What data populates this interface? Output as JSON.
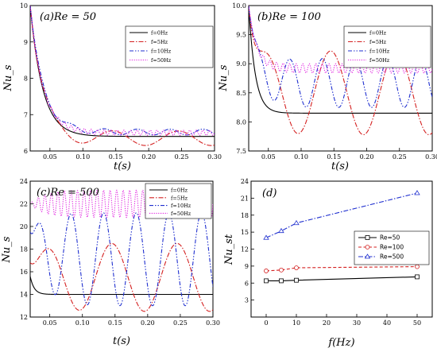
{
  "chart_data": [
    {
      "type": "line",
      "title": "(a)Re = 50",
      "xlabel": "t(s)",
      "ylabel": "Nu_s",
      "xlim": [
        0.02,
        0.3
      ],
      "ylim": [
        6.0,
        10.0
      ],
      "xticks": [
        "0.05",
        "0.10",
        "0.15",
        "0.20",
        "0.25",
        "0.30"
      ],
      "yticks": [
        "6",
        "7",
        "8",
        "9",
        "10"
      ],
      "legend": "top-right",
      "series": [
        {
          "name": "f=0Hz",
          "color": "#000000",
          "dash": "solid",
          "start": 10.0,
          "mean": 6.4,
          "tau": 0.019,
          "amp": 0.0,
          "freq": 0
        },
        {
          "name": "f=5Hz",
          "color": "#d42020",
          "dash": "dashdot",
          "start": 10.0,
          "mean": 6.35,
          "tau": 0.019,
          "amp": 0.2,
          "freq": 10
        },
        {
          "name": "f=10Hz",
          "color": "#1f2fcf",
          "dash": "dashdot2",
          "start": 10.0,
          "mean": 6.52,
          "tau": 0.02,
          "amp": 0.08,
          "freq": 20
        },
        {
          "name": "f=50Hz",
          "color": "#e020e0",
          "dash": "dotted",
          "start": 10.0,
          "mean": 6.5,
          "tau": 0.019,
          "amp": 0.07,
          "freq": 100
        }
      ]
    },
    {
      "type": "line",
      "title": "(b)Re = 100",
      "xlabel": "t(s)",
      "ylabel": "Nu_s",
      "xlim": [
        0.02,
        0.3
      ],
      "ylim": [
        7.5,
        10.0
      ],
      "xticks": [
        "0.05",
        "0.10",
        "0.15",
        "0.20",
        "0.25",
        "0.30"
      ],
      "yticks": [
        "7.5",
        "8.0",
        "8.5",
        "9.0",
        "9.5",
        "10.0"
      ],
      "legend": "top-right",
      "series": [
        {
          "name": "f=0Hz",
          "color": "#000000",
          "dash": "solid",
          "start": 10.0,
          "mean": 8.15,
          "tau": 0.01,
          "amp": 0.0,
          "freq": 0
        },
        {
          "name": "f=5Hz",
          "color": "#d42020",
          "dash": "dashdot",
          "start": 10.0,
          "mean": 8.5,
          "tau": 0.012,
          "amp": 0.72,
          "freq": 10
        },
        {
          "name": "f=10Hz",
          "color": "#1f2fcf",
          "dash": "dashdot2",
          "start": 10.0,
          "mean": 8.67,
          "tau": 0.012,
          "amp": 0.42,
          "freq": 20
        },
        {
          "name": "f=50Hz",
          "color": "#e020e0",
          "dash": "dotted",
          "start": 10.0,
          "mean": 8.92,
          "tau": 0.012,
          "amp": 0.08,
          "freq": 100
        }
      ]
    },
    {
      "type": "line",
      "title": "(c)Re = 500",
      "xlabel": "t(s)",
      "ylabel": "Nu_s",
      "xlim": [
        0.02,
        0.3
      ],
      "ylim": [
        12.0,
        24.0
      ],
      "xticks": [
        "0.05",
        "0.10",
        "0.15",
        "0.20",
        "0.25",
        "0.30"
      ],
      "yticks": [
        "12",
        "14",
        "16",
        "18",
        "20",
        "22",
        "24"
      ],
      "legend": "top-right",
      "series": [
        {
          "name": "f=0Hz",
          "color": "#000000",
          "dash": "solid",
          "start": 15.6,
          "mean": 14.0,
          "tau": 0.006,
          "amp": 0.0,
          "freq": 0
        },
        {
          "name": "f=5Hz",
          "color": "#d42020",
          "dash": "dashdot",
          "start": 16.8,
          "mean": 15.5,
          "tau": 0.02,
          "amp": 3.0,
          "freq": 10
        },
        {
          "name": "f=10Hz",
          "color": "#1f2fcf",
          "dash": "dashdot2",
          "start": 19.5,
          "mean": 17.1,
          "tau": 0.02,
          "amp": 4.1,
          "freq": 20
        },
        {
          "name": "f=50Hz",
          "color": "#e020e0",
          "dash": "dotted",
          "start": 22.0,
          "mean": 22.0,
          "tau": 0.02,
          "amp": 1.2,
          "freq": 100
        }
      ]
    },
    {
      "type": "line",
      "title": "(d)",
      "xlabel": "f(Hz)",
      "ylabel": "Nu_st",
      "xlim": [
        -5,
        55
      ],
      "ylim": [
        0,
        24
      ],
      "xticks": [
        "0",
        "10",
        "20",
        "30",
        "40",
        "50"
      ],
      "yticks": [
        "3",
        "6",
        "9",
        "12",
        "15",
        "18",
        "21",
        "24"
      ],
      "legend": "right",
      "x": [
        0,
        5,
        10,
        50
      ],
      "series": [
        {
          "name": "Re=50",
          "color": "#000000",
          "dash": "solid",
          "marker": "square",
          "values": [
            6.4,
            6.4,
            6.5,
            7.1
          ]
        },
        {
          "name": "Re=100",
          "color": "#d42020",
          "dash": "dashed",
          "marker": "circle",
          "values": [
            8.15,
            8.3,
            8.7,
            8.9
          ]
        },
        {
          "name": "Re=500",
          "color": "#1f2fcf",
          "dash": "dashdot",
          "marker": "triangle",
          "values": [
            14.0,
            15.2,
            16.6,
            21.9
          ]
        }
      ]
    }
  ]
}
